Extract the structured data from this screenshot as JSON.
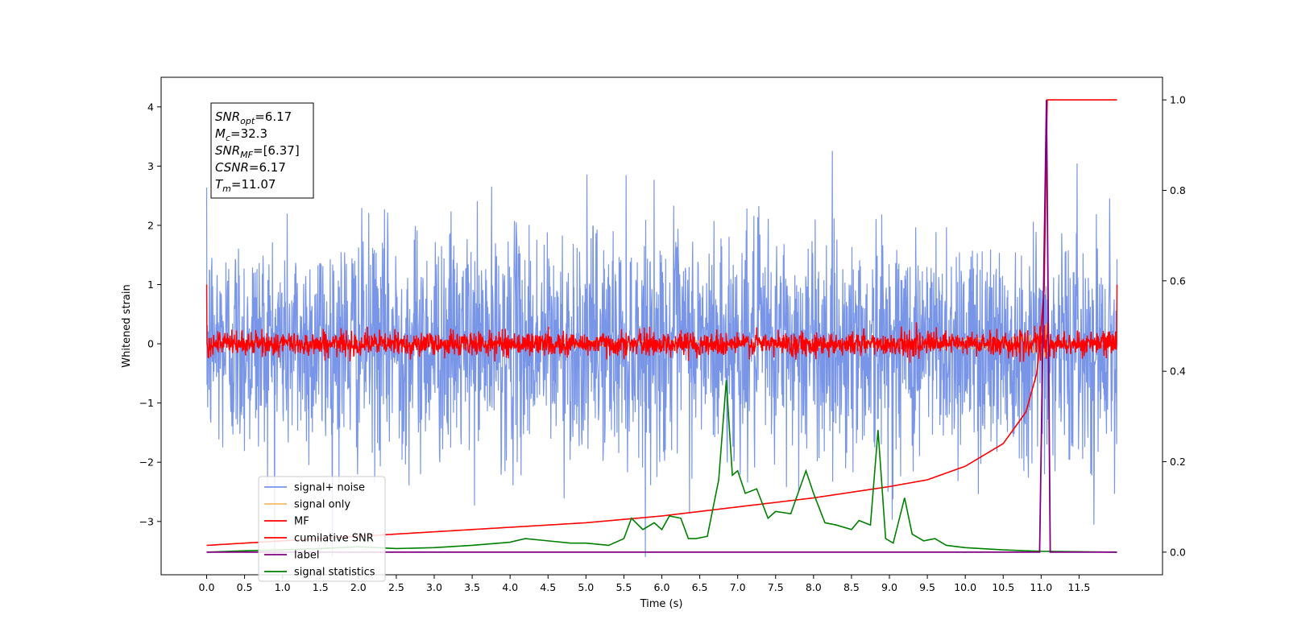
{
  "chart_data": {
    "type": "line",
    "xlabel": "Time (s)",
    "ylabel_left": "Whitened strain",
    "xlim": [
      -0.6,
      12.6
    ],
    "ylim_left": [
      -3.9,
      4.5
    ],
    "ylim_right": [
      -0.05,
      1.05
    ],
    "x_ticks": [
      0.0,
      0.5,
      1.0,
      1.5,
      2.0,
      2.5,
      3.0,
      3.5,
      4.0,
      4.5,
      5.0,
      5.5,
      6.0,
      6.5,
      7.0,
      7.5,
      8.0,
      8.5,
      9.0,
      9.5,
      10.0,
      10.5,
      11.0,
      11.5
    ],
    "x_tick_labels": [
      "0.0",
      "0.5",
      "1.0",
      "1.5",
      "2.0",
      "2.5",
      "3.0",
      "3.5",
      "4.0",
      "4.5",
      "5.0",
      "5.5",
      "6.0",
      "6.5",
      "7.0",
      "7.5",
      "8.0",
      "8.5",
      "9.0",
      "9.5",
      "10.0",
      "10.5",
      "11.0",
      "11.5"
    ],
    "y_left_ticks": [
      -3,
      -2,
      -1,
      0,
      1,
      2,
      3,
      4
    ],
    "y_left_tick_labels": [
      "−3",
      "−2",
      "−1",
      "0",
      "1",
      "2",
      "3",
      "4"
    ],
    "y_right_ticks": [
      0.0,
      0.2,
      0.4,
      0.6,
      0.8,
      1.0
    ],
    "y_right_tick_labels": [
      "0.0",
      "0.2",
      "0.4",
      "0.6",
      "0.8",
      "1.0"
    ],
    "legend_position": "lower-left",
    "series": [
      {
        "name": "signal+ noise",
        "color": "#7895e8",
        "axis": "left",
        "x_range": [
          0,
          12
        ],
        "amplitude_std": 1.0,
        "peak_range": [
          -3.6,
          4.2
        ]
      },
      {
        "name": "signal only",
        "color": "#f5b96a",
        "axis": "left",
        "x_range": [
          0,
          12
        ],
        "chirp_merger": 11.07,
        "peak_amplitude": 0.35
      },
      {
        "name": "MF",
        "color": "#ff0000",
        "axis": "left",
        "x_range": [
          0,
          12
        ],
        "amplitude_std": 0.1,
        "start_value": 1.0,
        "end_value": 1.0
      },
      {
        "name": "cumilative SNR",
        "color": "#ff0000",
        "axis": "right",
        "x": [
          0.0,
          1.0,
          2.0,
          3.0,
          4.0,
          5.0,
          6.0,
          7.0,
          8.0,
          9.0,
          9.5,
          10.0,
          10.5,
          10.8,
          10.95,
          11.05,
          11.07,
          12.0
        ],
        "y": [
          0.015,
          0.025,
          0.035,
          0.045,
          0.055,
          0.065,
          0.08,
          0.1,
          0.12,
          0.145,
          0.16,
          0.19,
          0.24,
          0.31,
          0.4,
          0.6,
          1.0,
          1.0
        ]
      },
      {
        "name": "label",
        "color": "#800080",
        "axis": "right",
        "x": [
          0.0,
          10.98,
          11.07,
          11.12,
          12.0
        ],
        "y": [
          0.0,
          0.0,
          1.0,
          0.0,
          0.0
        ]
      },
      {
        "name": "signal statistics",
        "color": "#008000",
        "axis": "right",
        "x": [
          0.0,
          0.5,
          1.0,
          1.5,
          2.0,
          2.5,
          3.0,
          3.5,
          4.0,
          4.2,
          4.5,
          4.8,
          5.0,
          5.3,
          5.5,
          5.6,
          5.75,
          5.9,
          6.0,
          6.1,
          6.25,
          6.35,
          6.45,
          6.6,
          6.75,
          6.85,
          6.93,
          7.0,
          7.1,
          7.25,
          7.4,
          7.5,
          7.7,
          7.9,
          8.0,
          8.15,
          8.3,
          8.5,
          8.6,
          8.75,
          8.85,
          8.95,
          9.05,
          9.2,
          9.3,
          9.45,
          9.6,
          9.75,
          10.0,
          10.5,
          11.0,
          12.0
        ],
        "y": [
          0.0,
          0.003,
          0.005,
          0.008,
          0.012,
          0.008,
          0.01,
          0.015,
          0.022,
          0.03,
          0.025,
          0.02,
          0.02,
          0.015,
          0.03,
          0.075,
          0.05,
          0.065,
          0.05,
          0.08,
          0.075,
          0.03,
          0.03,
          0.035,
          0.16,
          0.38,
          0.17,
          0.18,
          0.13,
          0.14,
          0.075,
          0.09,
          0.085,
          0.18,
          0.13,
          0.065,
          0.06,
          0.05,
          0.07,
          0.06,
          0.27,
          0.03,
          0.02,
          0.12,
          0.04,
          0.025,
          0.03,
          0.015,
          0.01,
          0.005,
          0.002,
          0.0
        ]
      }
    ],
    "annotations": [
      {
        "label": "SNR",
        "sub": "opt",
        "value": "=6.17"
      },
      {
        "label": "M",
        "sub": "c",
        "value": "=32.3"
      },
      {
        "label": "SNR",
        "sub": "MF",
        "value": "=[6.37]"
      },
      {
        "label": "CSNR",
        "sub": "",
        "value": "=6.17"
      },
      {
        "label": "T",
        "sub": "m",
        "value": "=11.07"
      }
    ]
  }
}
